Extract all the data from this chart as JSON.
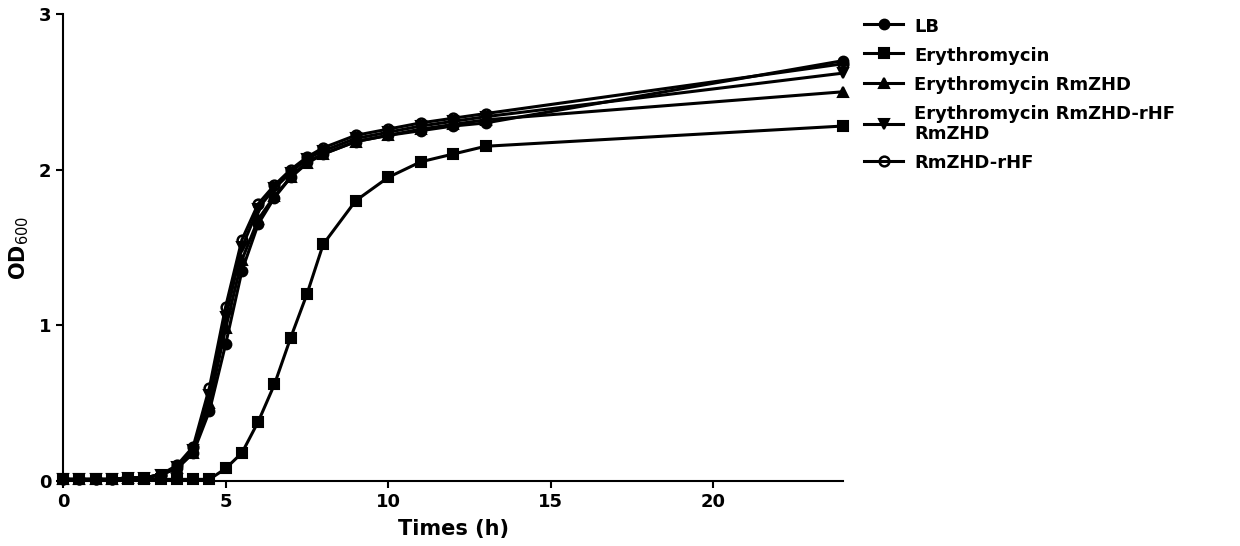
{
  "xlabel": "Times (h)",
  "ylabel": "OD$_{600}$",
  "xlim": [
    0,
    24
  ],
  "ylim": [
    0,
    3
  ],
  "xticks": [
    0,
    5,
    10,
    15,
    20
  ],
  "yticks": [
    0,
    1,
    2,
    3
  ],
  "series": [
    {
      "label": "LB",
      "marker": "o",
      "marker_size": 7,
      "linewidth": 2.2,
      "color": "#000000",
      "fillstyle": "full",
      "x": [
        0,
        0.5,
        1,
        1.5,
        2,
        2.5,
        3,
        3.5,
        4,
        4.5,
        5,
        5.5,
        6,
        6.5,
        7,
        7.5,
        8,
        9,
        10,
        11,
        12,
        13,
        24
      ],
      "y": [
        0.01,
        0.01,
        0.01,
        0.01,
        0.02,
        0.02,
        0.04,
        0.08,
        0.18,
        0.45,
        0.88,
        1.35,
        1.65,
        1.82,
        1.95,
        2.05,
        2.1,
        2.18,
        2.22,
        2.25,
        2.28,
        2.3,
        2.7
      ]
    },
    {
      "label": "Erythromycin",
      "marker": "s",
      "marker_size": 7,
      "linewidth": 2.2,
      "color": "#000000",
      "fillstyle": "full",
      "x": [
        0,
        0.5,
        1,
        1.5,
        2,
        2.5,
        3,
        3.5,
        4,
        4.5,
        5,
        5.5,
        6,
        6.5,
        7,
        7.5,
        8,
        9,
        10,
        11,
        12,
        13,
        24
      ],
      "y": [
        0.01,
        0.01,
        0.01,
        0.01,
        0.01,
        0.01,
        0.01,
        0.01,
        0.01,
        0.01,
        0.08,
        0.18,
        0.38,
        0.62,
        0.92,
        1.2,
        1.52,
        1.8,
        1.95,
        2.05,
        2.1,
        2.15,
        2.28
      ]
    },
    {
      "label": "Erythromycin RmZHD",
      "marker": "^",
      "marker_size": 7,
      "linewidth": 2.2,
      "color": "#000000",
      "fillstyle": "full",
      "x": [
        0,
        0.5,
        1,
        1.5,
        2,
        2.5,
        3,
        3.5,
        4,
        4.5,
        5,
        5.5,
        6,
        6.5,
        7,
        7.5,
        8,
        9,
        10,
        11,
        12,
        13,
        24
      ],
      "y": [
        0.01,
        0.01,
        0.01,
        0.01,
        0.02,
        0.02,
        0.04,
        0.08,
        0.18,
        0.5,
        0.98,
        1.42,
        1.68,
        1.83,
        1.95,
        2.04,
        2.1,
        2.18,
        2.22,
        2.26,
        2.29,
        2.32,
        2.5
      ]
    },
    {
      "label": "Erythromycin RmZHD-rHF\nRmZHD",
      "marker": "v",
      "marker_size": 7,
      "linewidth": 2.2,
      "color": "#000000",
      "fillstyle": "full",
      "x": [
        0,
        0.5,
        1,
        1.5,
        2,
        2.5,
        3,
        3.5,
        4,
        4.5,
        5,
        5.5,
        6,
        6.5,
        7,
        7.5,
        8,
        9,
        10,
        11,
        12,
        13,
        24
      ],
      "y": [
        0.01,
        0.01,
        0.01,
        0.01,
        0.02,
        0.02,
        0.04,
        0.09,
        0.2,
        0.55,
        1.05,
        1.5,
        1.75,
        1.88,
        1.98,
        2.07,
        2.12,
        2.2,
        2.24,
        2.28,
        2.31,
        2.34,
        2.62
      ]
    },
    {
      "label": "RmZHD-rHF",
      "marker": "o",
      "marker_size": 7,
      "linewidth": 2.2,
      "color": "#000000",
      "fillstyle": "none",
      "x": [
        0,
        0.5,
        1,
        1.5,
        2,
        2.5,
        3,
        3.5,
        4,
        4.5,
        5,
        5.5,
        6,
        6.5,
        7,
        7.5,
        8,
        9,
        10,
        11,
        12,
        13,
        24
      ],
      "y": [
        0.01,
        0.01,
        0.01,
        0.01,
        0.02,
        0.02,
        0.04,
        0.1,
        0.22,
        0.6,
        1.12,
        1.55,
        1.78,
        1.9,
        2.0,
        2.08,
        2.14,
        2.22,
        2.26,
        2.3,
        2.33,
        2.36,
        2.68
      ]
    }
  ],
  "background_color": "#ffffff",
  "figsize": [
    12.4,
    5.46
  ],
  "dpi": 100
}
